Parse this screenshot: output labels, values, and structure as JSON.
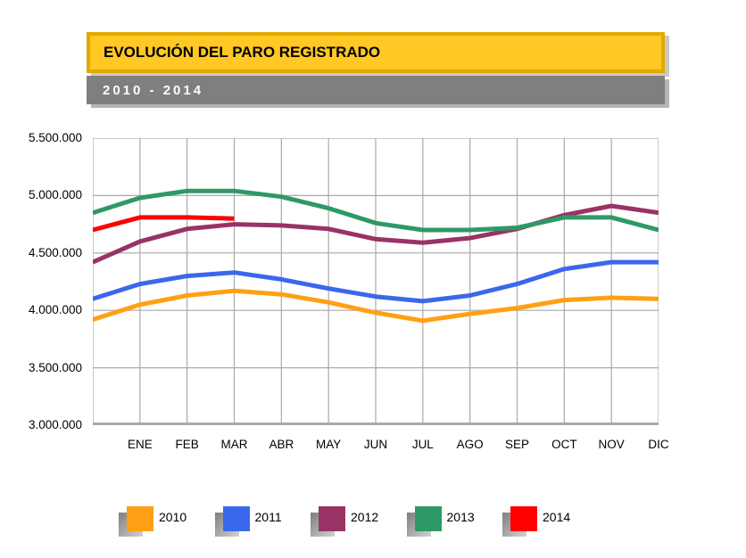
{
  "header": {
    "title": "EVOLUCIÓN DEL PARO REGISTRADO",
    "subtitle": "2010 - 2014",
    "title_bg": "#FFC824",
    "title_border": "#E2A900",
    "subtitle_bg": "#7F7F7F"
  },
  "chart_data": {
    "type": "line",
    "title": "EVOLUCIÓN DEL PARO REGISTRADO",
    "subtitle": "2010 - 2014",
    "categories": [
      "ENE",
      "FEB",
      "MAR",
      "ABR",
      "MAY",
      "JUN",
      "JUL",
      "AGO",
      "SEP",
      "OCT",
      "NOV",
      "DIC"
    ],
    "y_ticks": [
      "5.500.000",
      "5.000.000",
      "4.500.000",
      "4.000.000",
      "3.500.000",
      "3.000.000"
    ],
    "ylim": [
      3000000,
      5500000
    ],
    "grid": true,
    "gridline_color": "#A9A9A9",
    "legend_position": "bottom",
    "note": "each series begins on the left axis one slot before ENE (previous December value); 2014 ends at MAR",
    "series": [
      {
        "name": "2010",
        "color": "#FFA014",
        "values": [
          3920000,
          4050000,
          4130000,
          4170000,
          4140000,
          4070000,
          3980000,
          3910000,
          3970000,
          4020000,
          4090000,
          4110000,
          4100000
        ]
      },
      {
        "name": "2011",
        "color": "#3A68EC",
        "values": [
          4100000,
          4230000,
          4300000,
          4330000,
          4270000,
          4190000,
          4120000,
          4080000,
          4130000,
          4230000,
          4360000,
          4420000,
          4420000
        ]
      },
      {
        "name": "2012",
        "color": "#993366",
        "values": [
          4420000,
          4600000,
          4710000,
          4750000,
          4740000,
          4710000,
          4620000,
          4590000,
          4630000,
          4710000,
          4830000,
          4910000,
          4850000
        ]
      },
      {
        "name": "2013",
        "color": "#2E9966",
        "values": [
          4850000,
          4980000,
          5040000,
          5040000,
          4990000,
          4890000,
          4760000,
          4700000,
          4700000,
          4720000,
          4810000,
          4810000,
          4700000
        ]
      },
      {
        "name": "2014",
        "color": "#FF0000",
        "values": [
          4700000,
          4810000,
          4810000,
          4800000,
          null,
          null,
          null,
          null,
          null,
          null,
          null,
          null,
          null
        ]
      }
    ]
  },
  "legend": {
    "items": [
      {
        "label": "2010",
        "color": "#FFA014"
      },
      {
        "label": "2011",
        "color": "#3A68EC"
      },
      {
        "label": "2012",
        "color": "#993366"
      },
      {
        "label": "2013",
        "color": "#2E9966"
      },
      {
        "label": "2014",
        "color": "#FF0000"
      }
    ]
  }
}
